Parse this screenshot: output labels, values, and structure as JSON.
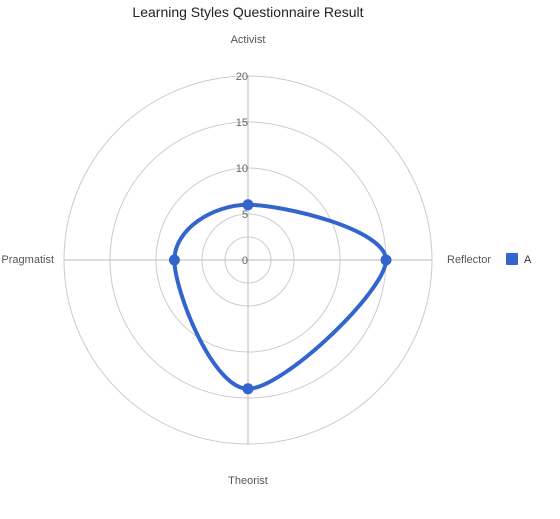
{
  "chart_data": {
    "type": "radar",
    "title": "Learning Styles Questionnaire Result",
    "axes": [
      "Activist",
      "Reflector",
      "Theorist",
      "Pragmatist"
    ],
    "rlim": [
      0,
      20
    ],
    "ticks": [
      "0",
      "5",
      "10",
      "15",
      "20"
    ],
    "grid": true,
    "legend_position": "right",
    "series": [
      {
        "name": "A",
        "values": [
          6,
          15,
          14,
          8
        ],
        "color": "#3366cc"
      }
    ]
  }
}
